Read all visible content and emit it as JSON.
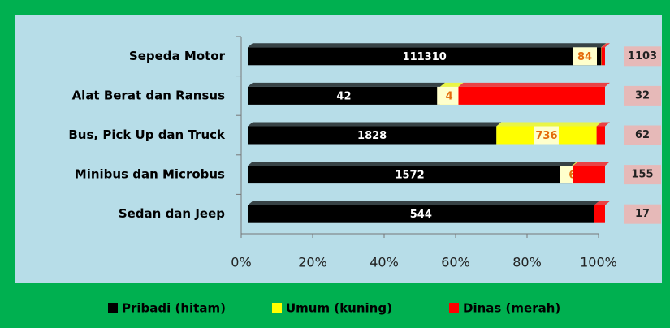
{
  "chart_data": {
    "type": "bar",
    "orientation": "horizontal",
    "stacking": "percent",
    "categories": [
      "Sepeda Motor",
      "Alat Berat dan Ransus",
      "Bus, Pick Up dan Truck",
      "Minibus dan Microbus",
      "Sedan dan Jeep"
    ],
    "series": [
      {
        "name": "Pribadi (hitam)",
        "color": "#000000",
        "values": [
          111310,
          42,
          1828,
          1572,
          544
        ]
      },
      {
        "name": "Umum (kuning)",
        "color": "#ffff00",
        "values": [
          84,
          4,
          736,
          6,
          null
        ]
      },
      {
        "name": "Dinas (merah)",
        "color": "#ff0000",
        "values": [
          1103,
          32,
          62,
          155,
          17
        ]
      }
    ],
    "xlim": [
      0,
      100
    ],
    "xticks": [
      {
        "value": 0,
        "label": "0%"
      },
      {
        "value": 20,
        "label": "20%"
      },
      {
        "value": 40,
        "label": "40%"
      },
      {
        "value": 60,
        "label": "60%"
      },
      {
        "value": 80,
        "label": "80%"
      },
      {
        "value": 100,
        "label": "100%"
      }
    ],
    "legend": "bottom"
  }
}
